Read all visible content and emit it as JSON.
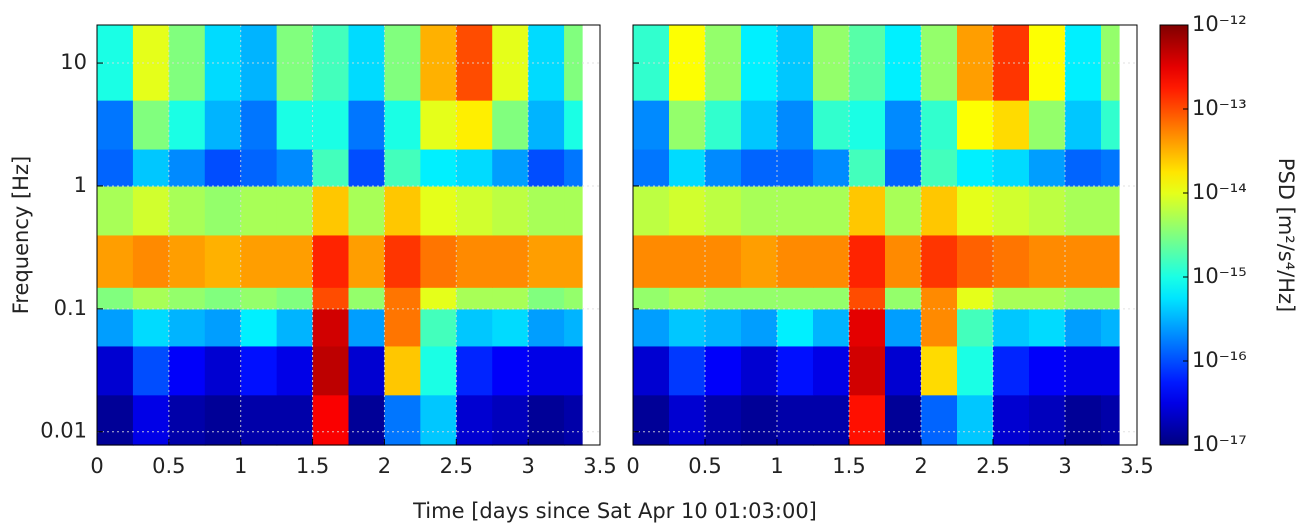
{
  "chart_data": [
    {
      "type": "heatmap",
      "ylabel": "Frequency [Hz]",
      "xlabel": "Time [days since Sat Apr 10 01:03:00]",
      "colormap": "jet",
      "ylog": true,
      "grid": true,
      "show_ytick_labels": true,
      "xlim": [
        0,
        3.5
      ],
      "xticks": [
        0,
        0.5,
        1,
        1.5,
        2,
        2.5,
        3,
        3.5
      ],
      "ylim": [
        0.0078,
        20.4
      ],
      "yticks": [
        0.01,
        0.1,
        1,
        10
      ],
      "x_edges": [
        0,
        0.25,
        0.5,
        0.75,
        1,
        1.25,
        1.5,
        1.75,
        2,
        2.25,
        2.5,
        2.75,
        3,
        3.25,
        3.375
      ],
      "y_edges": [
        0.0078,
        0.02,
        0.05,
        0.1,
        0.15,
        0.4,
        1,
        2,
        5,
        20.4
      ],
      "z": [
        [
          1.3e-17,
          3.2e-17,
          1.6e-17,
          1.3e-17,
          1.6e-17,
          1.6e-17,
          2.5e-13,
          1.3e-17,
          1.6e-16,
          4e-16,
          2.5e-17,
          2e-17,
          1.3e-17,
          1.6e-17
        ],
        [
          2.5e-17,
          1e-16,
          4e-17,
          2.5e-17,
          5e-17,
          3.2e-17,
          5e-13,
          2.5e-17,
          2.5e-14,
          1e-15,
          6.3e-17,
          4e-17,
          3.2e-17,
          3.2e-17
        ],
        [
          2.5e-16,
          5e-16,
          3.2e-16,
          2.5e-16,
          6.3e-16,
          3.2e-16,
          4e-13,
          2.5e-16,
          6.3e-14,
          1.6e-15,
          4e-16,
          5e-16,
          2.5e-16,
          3.2e-16
        ],
        [
          3.2e-15,
          5e-15,
          4e-15,
          3.2e-15,
          4e-15,
          3.2e-15,
          1e-13,
          4e-15,
          6.3e-14,
          1e-14,
          5e-15,
          5e-15,
          3.2e-15,
          4e-15
        ],
        [
          4e-14,
          5e-14,
          4e-14,
          3.2e-14,
          4e-14,
          4e-14,
          1.6e-13,
          4e-14,
          1.3e-13,
          6.3e-14,
          5e-14,
          5e-14,
          4e-14,
          4e-14
        ],
        [
          5e-15,
          7.9e-15,
          5e-15,
          4e-15,
          5e-15,
          5e-15,
          2.5e-14,
          5e-15,
          2.5e-14,
          1e-14,
          7.9e-15,
          6.3e-15,
          5e-15,
          5e-15
        ],
        [
          1.3e-16,
          4e-16,
          2e-16,
          1e-16,
          1.3e-16,
          2e-16,
          1.6e-15,
          1e-16,
          1.6e-15,
          6.3e-16,
          5e-16,
          2.5e-16,
          1e-16,
          1.6e-16
        ],
        [
          1.6e-16,
          3.2e-15,
          1e-15,
          3.2e-16,
          1.6e-16,
          1e-15,
          1e-15,
          1.6e-16,
          1e-15,
          1e-14,
          1.6e-14,
          3.2e-15,
          3.2e-16,
          1e-15
        ],
        [
          1e-15,
          1e-14,
          3.2e-15,
          5e-16,
          3.2e-16,
          3.2e-15,
          1.6e-15,
          5e-16,
          3.2e-15,
          3.2e-14,
          1e-13,
          1e-14,
          5e-16,
          3.2e-15
        ]
      ]
    },
    {
      "type": "heatmap",
      "colormap": "jet",
      "ylog": true,
      "grid": true,
      "show_ytick_labels": false,
      "xlim": [
        0,
        3.5
      ],
      "xticks": [
        0,
        0.5,
        1,
        1.5,
        2,
        2.5,
        3,
        3.5
      ],
      "ylim": [
        0.0078,
        20.4
      ],
      "yticks": [
        0.01,
        0.1,
        1,
        10
      ],
      "x_edges": [
        0,
        0.25,
        0.5,
        0.75,
        1,
        1.25,
        1.5,
        1.75,
        2,
        2.25,
        2.5,
        2.75,
        3,
        3.25,
        3.375
      ],
      "y_edges": [
        0.0078,
        0.02,
        0.05,
        0.1,
        0.15,
        0.4,
        1,
        2,
        5,
        20.4
      ],
      "z": [
        [
          1.3e-17,
          2.5e-17,
          1.6e-17,
          1.3e-17,
          1.6e-17,
          1.6e-17,
          2e-13,
          1.3e-17,
          1.3e-16,
          4e-16,
          2.5e-17,
          2e-17,
          1.3e-17,
          1.6e-17
        ],
        [
          2.5e-17,
          7.9e-17,
          4e-17,
          2.5e-17,
          5e-17,
          3.2e-17,
          4e-13,
          2.5e-17,
          2e-14,
          1e-15,
          6.3e-17,
          4e-17,
          3.2e-17,
          3.2e-17
        ],
        [
          2.5e-16,
          4e-16,
          3.2e-16,
          2.5e-16,
          6.3e-16,
          3.2e-16,
          3.2e-13,
          2.5e-16,
          5e-14,
          1.6e-15,
          4e-16,
          5e-16,
          2.5e-16,
          3.2e-16
        ],
        [
          4e-15,
          5e-15,
          4e-15,
          4e-15,
          4e-15,
          4e-15,
          1e-13,
          4e-15,
          5e-14,
          1e-14,
          5e-15,
          5e-15,
          4e-15,
          4e-15
        ],
        [
          5e-14,
          5e-14,
          5e-14,
          4e-14,
          5e-14,
          5e-14,
          1.6e-13,
          5e-14,
          1.3e-13,
          7.9e-14,
          6.3e-14,
          5e-14,
          5e-14,
          5e-14
        ],
        [
          6.3e-15,
          7.9e-15,
          6.3e-15,
          5e-15,
          5e-15,
          5e-15,
          2.5e-14,
          5e-15,
          2.5e-14,
          1e-14,
          7.9e-15,
          6.3e-15,
          5e-15,
          5e-15
        ],
        [
          1.6e-16,
          5e-16,
          2e-16,
          1.3e-16,
          1.3e-16,
          2e-16,
          1.6e-15,
          1.3e-16,
          1.6e-15,
          6.3e-16,
          5e-16,
          2.5e-16,
          1.3e-16,
          1.6e-16
        ],
        [
          2e-16,
          4e-15,
          1.3e-15,
          4e-16,
          2e-16,
          1.3e-15,
          1e-15,
          2e-16,
          1.3e-15,
          1.3e-14,
          2e-14,
          4e-15,
          4e-16,
          1.3e-15
        ],
        [
          1.3e-15,
          1.3e-14,
          4e-15,
          6.3e-16,
          4e-16,
          4e-15,
          2e-15,
          6.3e-16,
          4e-15,
          4e-14,
          1.3e-13,
          1.3e-14,
          6.3e-16,
          4e-15
        ]
      ]
    }
  ],
  "colorbar": {
    "label": "PSD [m²/s⁴/Hz]",
    "lim": [
      1e-17,
      1e-12
    ],
    "log": true,
    "colormap": "jet",
    "ticks": [
      {
        "value": 1e-12,
        "label": "10⁻¹²"
      },
      {
        "value": 1e-13,
        "label": "10⁻¹³"
      },
      {
        "value": 1e-14,
        "label": "10⁻¹⁴"
      },
      {
        "value": 1e-15,
        "label": "10⁻¹⁵"
      },
      {
        "value": 1e-16,
        "label": "10⁻¹⁶"
      },
      {
        "value": 1e-17,
        "label": "10⁻¹⁷"
      }
    ]
  }
}
